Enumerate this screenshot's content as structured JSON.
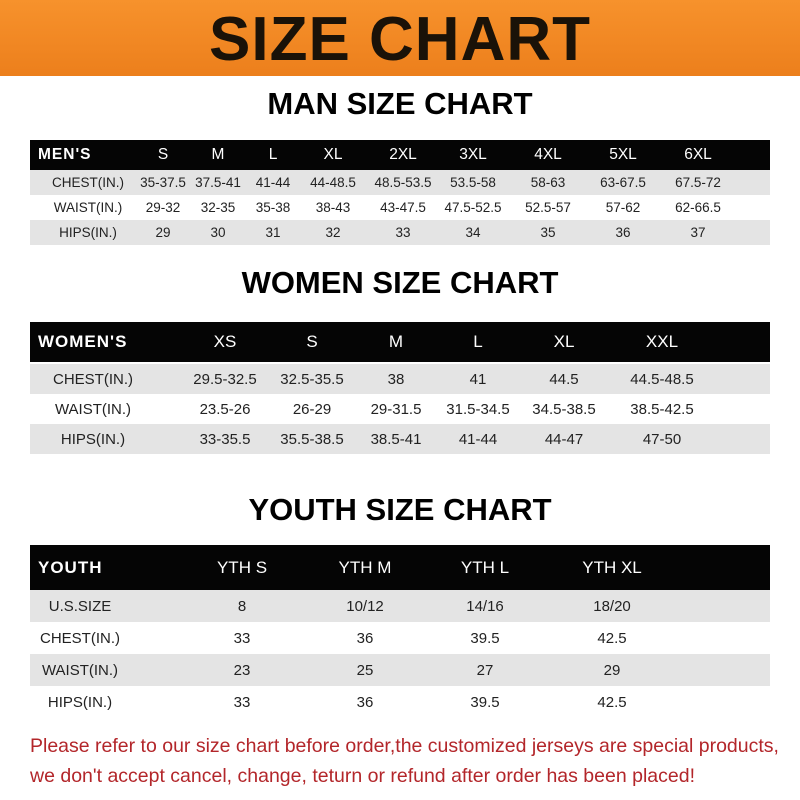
{
  "banner": {
    "title": "SIZE CHART",
    "color": "#f08a24"
  },
  "men": {
    "title": "MAN SIZE CHART",
    "header": [
      "MEN'S",
      "S",
      "M",
      "L",
      "XL",
      "2XL",
      "3XL",
      "4XL",
      "5XL",
      "6XL"
    ],
    "rows": [
      [
        "CHEST(IN.)",
        "35-37.5",
        "37.5-41",
        "41-44",
        "44-48.5",
        "48.5-53.5",
        "53.5-58",
        "58-63",
        "63-67.5",
        "67.5-72"
      ],
      [
        "WAIST(IN.)",
        "29-32",
        "32-35",
        "35-38",
        "38-43",
        "43-47.5",
        "47.5-52.5",
        "52.5-57",
        "57-62",
        "62-66.5"
      ],
      [
        "HIPS(IN.)",
        "29",
        "30",
        "31",
        "32",
        "33",
        "34",
        "35",
        "36",
        "37"
      ]
    ]
  },
  "women": {
    "title": "WOMEN SIZE CHART",
    "header": [
      "WOMEN'S",
      "XS",
      "S",
      "M",
      "L",
      "XL",
      "XXL"
    ],
    "rows": [
      [
        "CHEST(IN.)",
        "29.5-32.5",
        "32.5-35.5",
        "38",
        "41",
        "44.5",
        "44.5-48.5"
      ],
      [
        "WAIST(IN.)",
        "23.5-26",
        "26-29",
        "29-31.5",
        "31.5-34.5",
        "34.5-38.5",
        "38.5-42.5"
      ],
      [
        "HIPS(IN.)",
        "33-35.5",
        "35.5-38.5",
        "38.5-41",
        "41-44",
        "44-47",
        "47-50"
      ]
    ]
  },
  "youth": {
    "title": "YOUTH SIZE CHART",
    "header": [
      "YOUTH",
      "YTH S",
      "YTH M",
      "YTH L",
      "YTH XL"
    ],
    "rows": [
      [
        "U.S.SIZE",
        "8",
        "10/12",
        "14/16",
        "18/20"
      ],
      [
        "CHEST(IN.)",
        "33",
        "36",
        "39.5",
        "42.5"
      ],
      [
        "WAIST(IN.)",
        "23",
        "25",
        "27",
        "29"
      ],
      [
        "HIPS(IN.)",
        "33",
        "36",
        "39.5",
        "42.5"
      ]
    ]
  },
  "note": {
    "line1": "Please refer to our size chart before order,the customized jerseys are special products,",
    "line2": "we don't accept cancel, change, teturn or refund after order has been placed!",
    "color": "#b3262a"
  }
}
